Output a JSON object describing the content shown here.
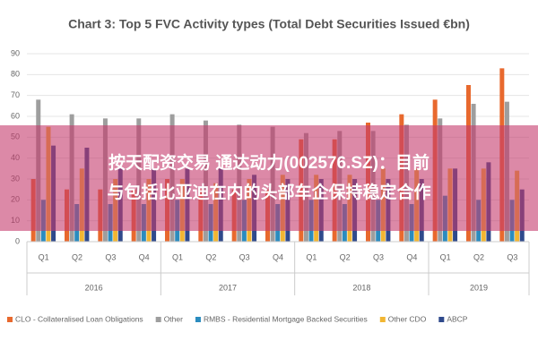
{
  "chart_data": {
    "type": "bar",
    "title": "Chart 3: Top 5 FVC Activity types (Total Debt Securities Issued €bn)",
    "groups": [
      {
        "label": "2016",
        "categories": [
          "Q1",
          "Q2",
          "Q3",
          "Q4"
        ]
      },
      {
        "label": "2017",
        "categories": [
          "Q1",
          "Q2",
          "Q3",
          "Q4"
        ]
      },
      {
        "label": "2018",
        "categories": [
          "Q1",
          "Q2",
          "Q3",
          "Q4"
        ]
      },
      {
        "label": "2019",
        "categories": [
          "Q1",
          "Q2",
          "Q3"
        ]
      }
    ],
    "series": [
      {
        "name": "CLO - Collateralised Loan Obligations",
        "color": "#e8692e",
        "values": [
          30,
          25,
          25,
          25,
          30,
          25,
          25,
          25,
          49,
          49,
          57,
          61,
          68,
          75,
          83
        ]
      },
      {
        "name": "Other",
        "color": "#9e9e9e",
        "values": [
          68,
          61,
          59,
          59,
          61,
          58,
          56,
          55,
          52,
          53,
          53,
          56,
          59,
          66,
          67
        ]
      },
      {
        "name": "RMBS - Residential Mortgage Backed Securities",
        "color": "#2b8cbf",
        "values": [
          20,
          18,
          18,
          18,
          20,
          18,
          20,
          18,
          20,
          18,
          20,
          18,
          22,
          20,
          20
        ]
      },
      {
        "name": "Other CDO",
        "color": "#f2b632",
        "values": [
          55,
          35,
          30,
          30,
          30,
          28,
          30,
          32,
          32,
          32,
          35,
          35,
          35,
          35,
          34
        ]
      },
      {
        "name": "ABCP",
        "color": "#2f4a8c",
        "values": [
          46,
          45,
          35,
          35,
          35,
          35,
          32,
          30,
          30,
          30,
          30,
          30,
          35,
          38,
          25
        ]
      }
    ],
    "ylim": [
      0,
      90
    ],
    "yticks": [
      0,
      10,
      20,
      30,
      40,
      50,
      60,
      70,
      80,
      90
    ],
    "grid": true,
    "legend": "bottom"
  },
  "banner": {
    "lines": [
      "按天配资交易 通达动力(002576.SZ)：目前",
      "与包括比亚迪在内的头部车企保持稳定合作"
    ]
  }
}
